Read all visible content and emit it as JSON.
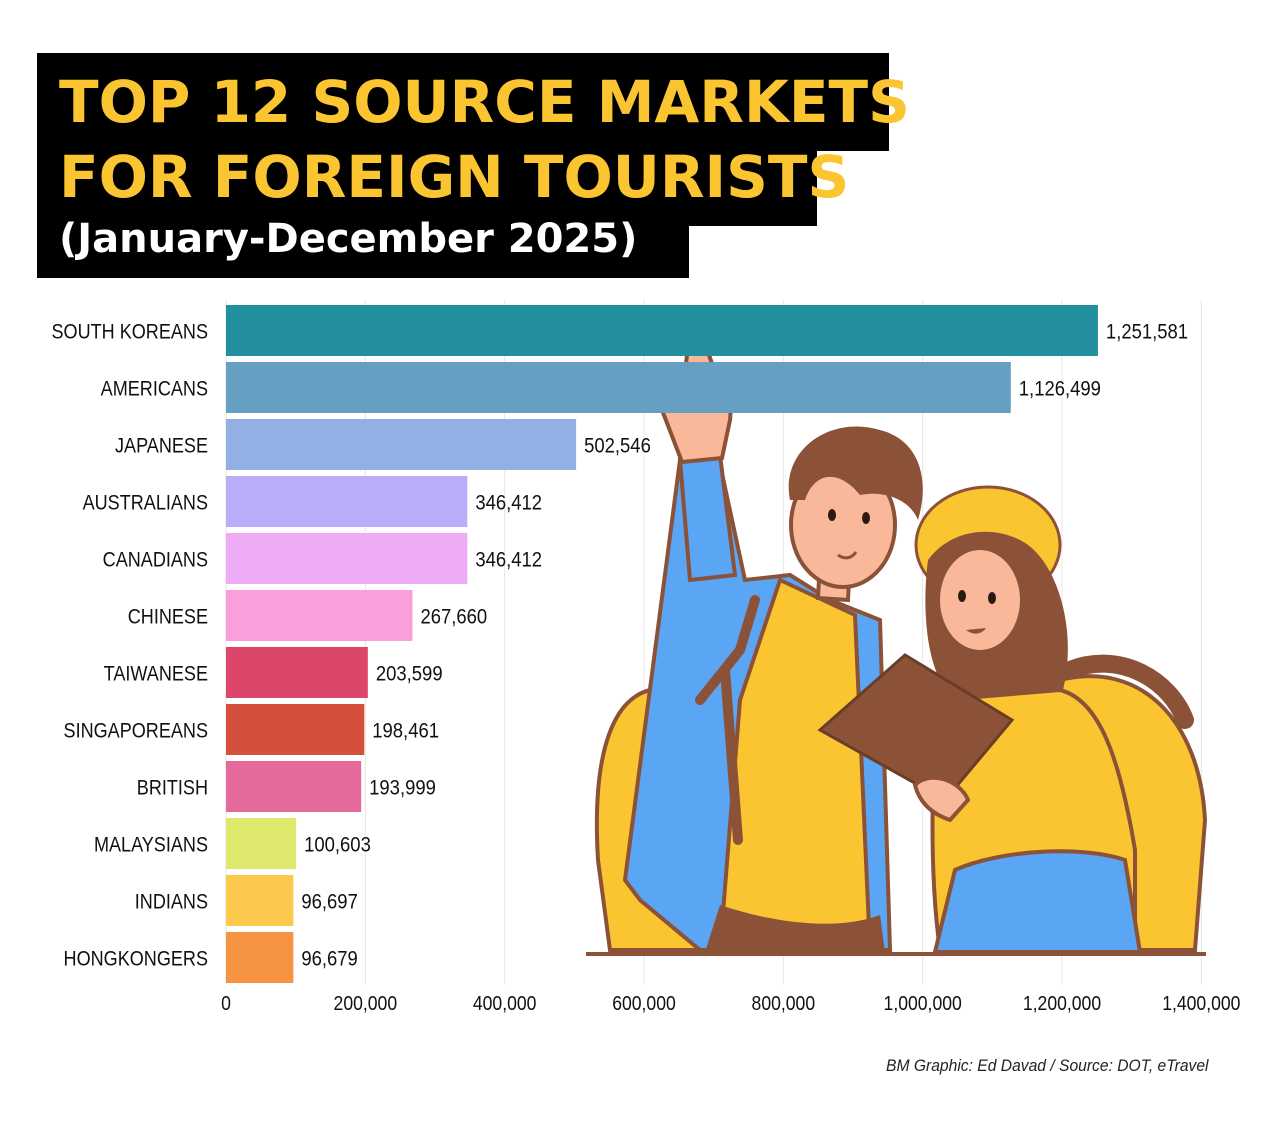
{
  "title": {
    "line1": "TOP 12 SOURCE MARKETS",
    "line2": "FOR FOREIGN TOURISTS",
    "line3": "(January-December 2025)"
  },
  "credit": "BM Graphic: Ed Davad / Source: DOT, eTravel",
  "chart_data": {
    "type": "bar",
    "orientation": "horizontal",
    "categories": [
      "SOUTH KOREANS",
      "AMERICANS",
      "JAPANESE",
      "AUSTRALIANS",
      "CANADIANS",
      "CHINESE",
      "TAIWANESE",
      "SINGAPOREANS",
      "BRITISH",
      "MALAYSIANS",
      "INDIANS",
      "HONGKONGERS"
    ],
    "values": [
      1251581,
      1126499,
      502546,
      346412,
      346412,
      267660,
      203599,
      198461,
      193999,
      100603,
      96697,
      96679
    ],
    "value_labels": [
      "1,251,581",
      "1,126,499",
      "502,546",
      "346,412",
      "346,412",
      "267,660",
      "203,599",
      "198,461",
      "193,999",
      "100,603",
      "96,697",
      "96,679"
    ],
    "colors": [
      "#2390a0",
      "#65a0c2",
      "#93b0e4",
      "#baaefa",
      "#eeacf6",
      "#fb9fdc",
      "#dc4668",
      "#d54f3c",
      "#e56a9b",
      "#dfe86c",
      "#fcc94c",
      "#f69341"
    ],
    "xticks": [
      "0",
      "200,000",
      "400,000",
      "600,000",
      "800,000",
      "1,000,000",
      "1,200,000",
      "1,400,000"
    ],
    "xlim": [
      0,
      1500000
    ],
    "grid": true,
    "legend": "none"
  }
}
